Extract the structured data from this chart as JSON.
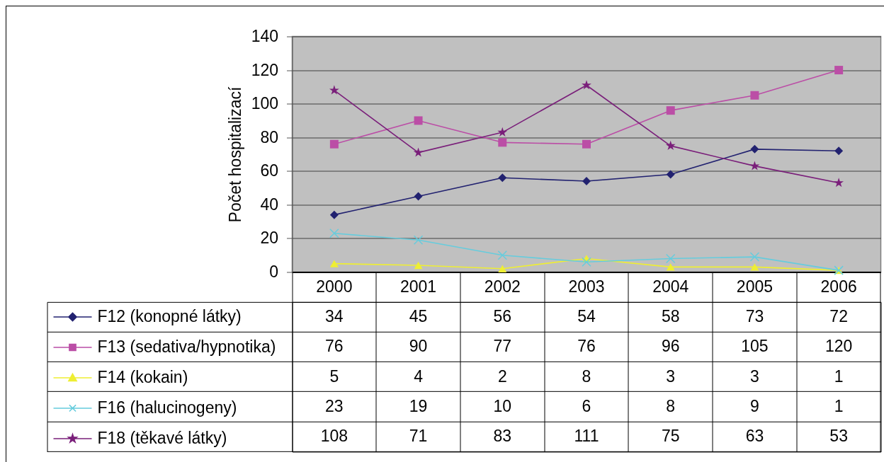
{
  "chart_data": {
    "type": "line",
    "ylabel": "Počet hospitalizací",
    "categories": [
      "2000",
      "2001",
      "2002",
      "2003",
      "2004",
      "2005",
      "2006"
    ],
    "series": [
      {
        "name": "F12 (konopné látky)",
        "color": "#222270",
        "marker": "diamond",
        "values": [
          34,
          45,
          56,
          54,
          58,
          73,
          72
        ]
      },
      {
        "name": "F13 (sedativa/hypnotika)",
        "color": "#bb4ea6",
        "marker": "square",
        "values": [
          76,
          90,
          77,
          76,
          96,
          105,
          120
        ]
      },
      {
        "name": "F14 (kokain)",
        "color": "#eeee33",
        "marker": "triangle",
        "values": [
          5,
          4,
          2,
          8,
          3,
          3,
          1
        ]
      },
      {
        "name": "F16 (halucinogeny)",
        "color": "#66ccdd",
        "marker": "cross",
        "values": [
          23,
          19,
          10,
          6,
          8,
          9,
          1
        ]
      },
      {
        "name": "F18 (těkavé látky)",
        "color": "#7a1f7a",
        "marker": "star",
        "values": [
          108,
          71,
          83,
          111,
          75,
          63,
          53
        ]
      }
    ],
    "ylim": [
      0,
      140
    ],
    "yticks": [
      0,
      20,
      40,
      60,
      80,
      100,
      120,
      140
    ],
    "grid": "y",
    "legend": "bottom left",
    "data_labels": true,
    "line_style": "solid"
  }
}
